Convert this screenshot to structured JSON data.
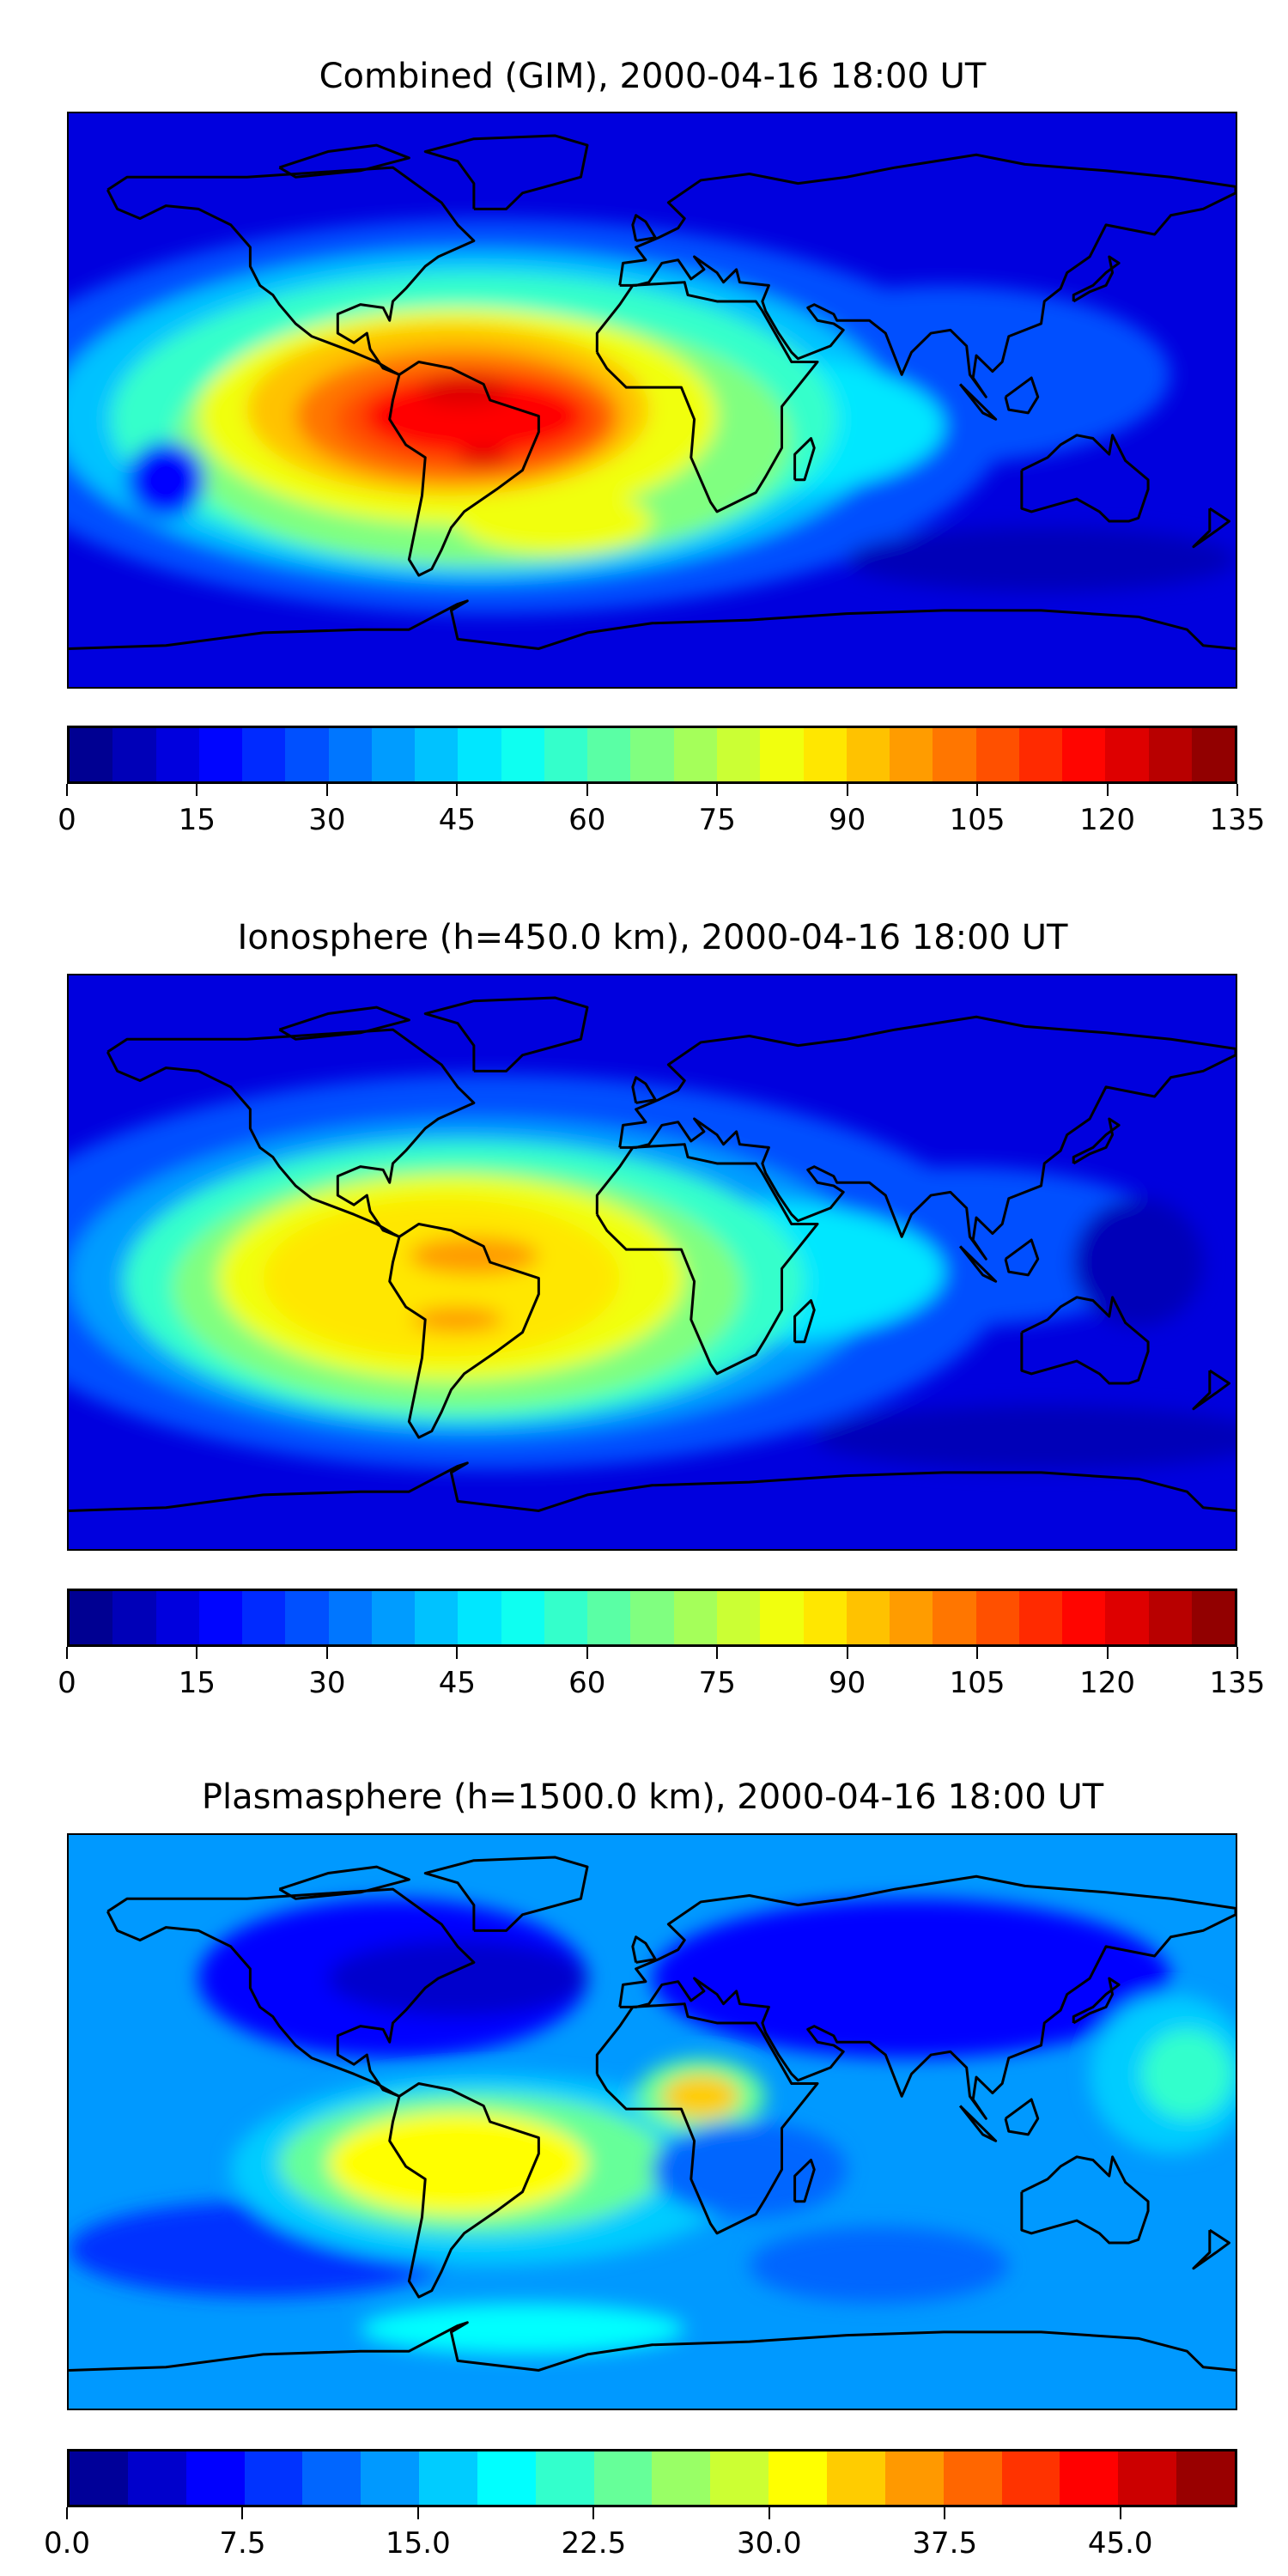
{
  "chart_data": [
    {
      "type": "heatmap",
      "title": "Combined (GIM), 2000-04-16 18:00 UT",
      "projection": "equirectangular world map with coastlines",
      "colormap": "jet",
      "colorbar": {
        "min": 0,
        "max": 135,
        "step": 5,
        "tick_values": [
          0,
          15,
          30,
          45,
          60,
          75,
          90,
          105,
          120,
          135
        ],
        "tick_labels": [
          "0",
          "15",
          "30",
          "45",
          "60",
          "75",
          "90",
          "105",
          "120",
          "135"
        ]
      },
      "field_peak": {
        "approx_value": 125,
        "location": "northern Brazil"
      }
    },
    {
      "type": "heatmap",
      "title": "Ionosphere  (h=450.0 km), 2000-04-16 18:00 UT",
      "projection": "equirectangular world map with coastlines",
      "colormap": "jet",
      "colorbar": {
        "min": 0,
        "max": 135,
        "step": 5,
        "tick_values": [
          0,
          15,
          30,
          45,
          60,
          75,
          90,
          105,
          120,
          135
        ],
        "tick_labels": [
          "0",
          "15",
          "30",
          "45",
          "60",
          "75",
          "90",
          "105",
          "120",
          "135"
        ]
      },
      "field_peak": {
        "approx_value": 97,
        "location": "northern South America"
      }
    },
    {
      "type": "heatmap",
      "title": "Plasmasphere (h=1500.0 km), 2000-04-16 18:00 UT",
      "projection": "equirectangular world map with coastlines",
      "colormap": "jet",
      "colorbar": {
        "min": 0,
        "max": 50,
        "step": 2.5,
        "tick_values": [
          0,
          7.5,
          15,
          22.5,
          30,
          37.5,
          45
        ],
        "tick_labels": [
          "0.0",
          "7.5",
          "15.0",
          "22.5",
          "30.0",
          "37.5",
          "45.0"
        ]
      },
      "field_peak": {
        "approx_value": 36,
        "location": "West Africa (Gulf of Guinea)"
      }
    }
  ]
}
